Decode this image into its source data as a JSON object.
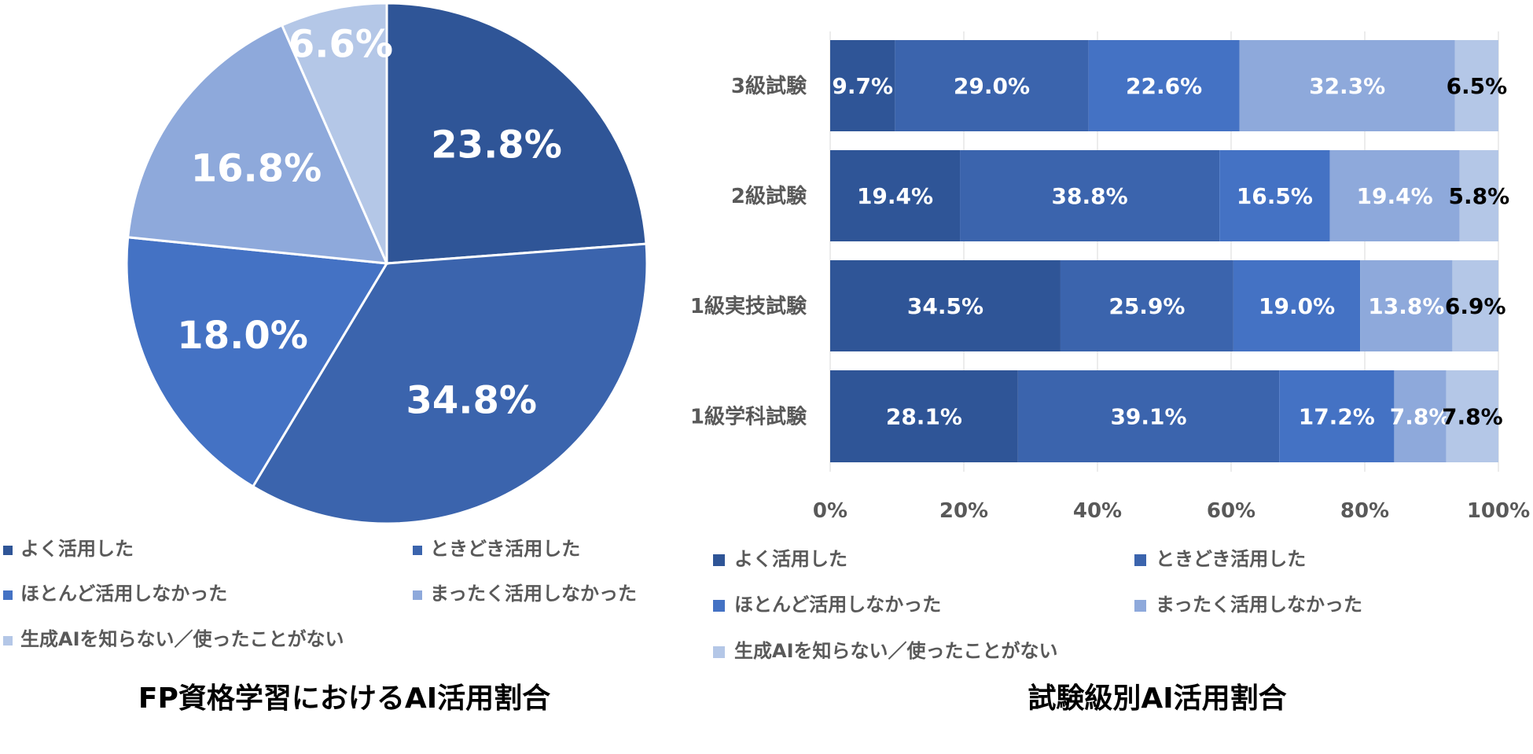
{
  "chart_data": [
    {
      "type": "pie",
      "title": "FP資格学習におけるAI活用割合",
      "categories": [
        "よく活用した",
        "ときどき活用した",
        "ほとんど活用しなかった",
        "まったく活用しなかった",
        "生成AIを知らない／使ったことがない"
      ],
      "values": [
        23.8,
        34.8,
        18.0,
        16.8,
        6.6
      ],
      "labels": [
        "23.8%",
        "34.8%",
        "18.0%",
        "16.8%",
        "6.6%"
      ],
      "colors": [
        "#2F5597",
        "#3B64AD",
        "#4472C4",
        "#8EA9DB",
        "#B4C7E7"
      ],
      "legend_position": "bottom"
    },
    {
      "type": "bar",
      "orientation": "horizontal",
      "stacked": "percent",
      "title": "試験級別AI活用割合",
      "categories": [
        "3級試験",
        "2級試験",
        "1級実技試験",
        "1級学科試験"
      ],
      "series": [
        {
          "name": "よく活用した",
          "values": [
            9.7,
            19.4,
            34.5,
            28.1
          ],
          "labels": [
            "9.7%",
            "19.4%",
            "34.5%",
            "28.1%"
          ],
          "color": "#2F5597",
          "label_color": "#ffffff"
        },
        {
          "name": "ときどき活用した",
          "values": [
            29.0,
            38.8,
            25.9,
            39.1
          ],
          "labels": [
            "29.0%",
            "38.8%",
            "25.9%",
            "39.1%"
          ],
          "color": "#3B64AD",
          "label_color": "#ffffff"
        },
        {
          "name": "ほとんど活用しなかった",
          "values": [
            22.6,
            16.5,
            19.0,
            17.2
          ],
          "labels": [
            "22.6%",
            "16.5%",
            "19.0%",
            "17.2%"
          ],
          "color": "#4472C4",
          "label_color": "#ffffff"
        },
        {
          "name": "まったく活用しなかった",
          "values": [
            32.3,
            19.4,
            13.8,
            7.8
          ],
          "labels": [
            "32.3%",
            "19.4%",
            "13.8%",
            "7.8%"
          ],
          "color": "#8EA9DB",
          "label_color": "#ffffff"
        },
        {
          "name": "生成AIを知らない／使ったことがない",
          "values": [
            6.5,
            5.8,
            6.9,
            7.8
          ],
          "labels": [
            "6.5%",
            "5.8%",
            "6.9%",
            "7.8%"
          ],
          "color": "#B4C7E7",
          "label_color": "#000000"
        }
      ],
      "x_ticks": [
        "0%",
        "20%",
        "40%",
        "60%",
        "80%",
        "100%"
      ],
      "xlim": [
        0,
        100
      ],
      "grid": true,
      "legend_position": "bottom"
    }
  ]
}
